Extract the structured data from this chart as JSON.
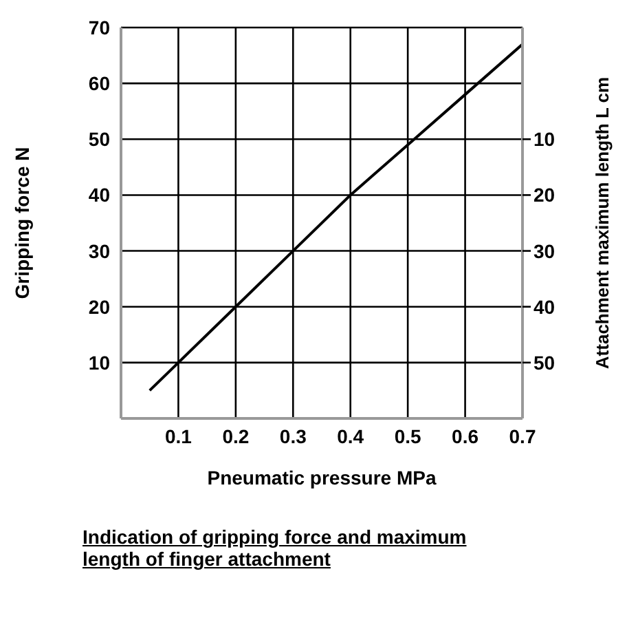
{
  "chart_data": {
    "type": "line",
    "x": [
      0.05,
      0.1,
      0.2,
      0.3,
      0.4,
      0.5,
      0.6,
      0.7
    ],
    "series": [
      {
        "color": "#000000",
        "values": [
          5,
          10,
          20,
          30,
          40,
          49,
          58,
          67
        ]
      }
    ],
    "xlabel": "Pneumatic pressure MPa",
    "ylabel": "Gripping force N",
    "y2label": "Attachment maximum length L cm",
    "xlim": [
      0,
      0.7
    ],
    "xticks": [
      0.1,
      0.2,
      0.3,
      0.4,
      0.5,
      0.6,
      0.7
    ],
    "ylim": [
      0,
      70
    ],
    "yticks": [
      10,
      20,
      30,
      40,
      50,
      60,
      70
    ],
    "y2lim": [
      60,
      -10
    ],
    "y2ticks": [
      10,
      20,
      30,
      40,
      50
    ],
    "grid": true,
    "marker": "none",
    "line_style": "solid",
    "annotations": [
      "Indication of gripping force and maximum length of finger attachment"
    ]
  }
}
